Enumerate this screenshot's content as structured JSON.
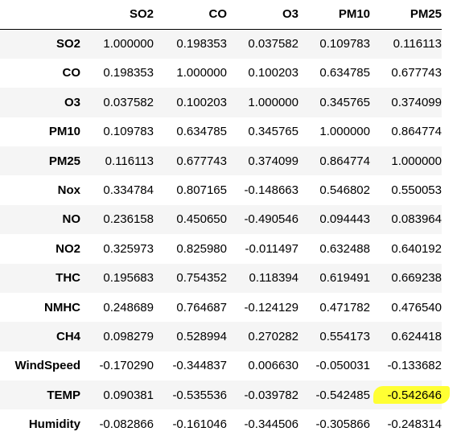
{
  "table": {
    "columns": [
      "SO2",
      "CO",
      "O3",
      "PM10",
      "PM25"
    ],
    "rows": [
      {
        "label": "SO2",
        "values": [
          "1.000000",
          "0.198353",
          "0.037582",
          "0.109783",
          "0.116113"
        ]
      },
      {
        "label": "CO",
        "values": [
          "0.198353",
          "1.000000",
          "0.100203",
          "0.634785",
          "0.677743"
        ]
      },
      {
        "label": "O3",
        "values": [
          "0.037582",
          "0.100203",
          "1.000000",
          "0.345765",
          "0.374099"
        ]
      },
      {
        "label": "PM10",
        "values": [
          "0.109783",
          "0.634785",
          "0.345765",
          "1.000000",
          "0.864774"
        ]
      },
      {
        "label": "PM25",
        "values": [
          "0.116113",
          "0.677743",
          "0.374099",
          "0.864774",
          "1.000000"
        ]
      },
      {
        "label": "Nox",
        "values": [
          "0.334784",
          "0.807165",
          "-0.148663",
          "0.546802",
          "0.550053"
        ]
      },
      {
        "label": "NO",
        "values": [
          "0.236158",
          "0.450650",
          "-0.490546",
          "0.094443",
          "0.083964"
        ]
      },
      {
        "label": "NO2",
        "values": [
          "0.325973",
          "0.825980",
          "-0.011497",
          "0.632488",
          "0.640192"
        ]
      },
      {
        "label": "THC",
        "values": [
          "0.195683",
          "0.754352",
          "0.118394",
          "0.619491",
          "0.669238"
        ]
      },
      {
        "label": "NMHC",
        "values": [
          "0.248689",
          "0.764687",
          "-0.124129",
          "0.471782",
          "0.476540"
        ]
      },
      {
        "label": "CH4",
        "values": [
          "0.098279",
          "0.528994",
          "0.270282",
          "0.554173",
          "0.624418"
        ]
      },
      {
        "label": "WindSpeed",
        "values": [
          "-0.170290",
          "-0.344837",
          "0.006630",
          "-0.050031",
          "-0.133682"
        ]
      },
      {
        "label": "TEMP",
        "values": [
          "0.090381",
          "-0.535536",
          "-0.039782",
          "-0.542485",
          "-0.542646"
        ]
      },
      {
        "label": "Humidity",
        "values": [
          "-0.082866",
          "-0.161046",
          "-0.344506",
          "-0.305866",
          "-0.248314"
        ]
      }
    ],
    "highlight": {
      "row": "TEMP",
      "column": "PM25",
      "color": "#ffff33"
    }
  }
}
